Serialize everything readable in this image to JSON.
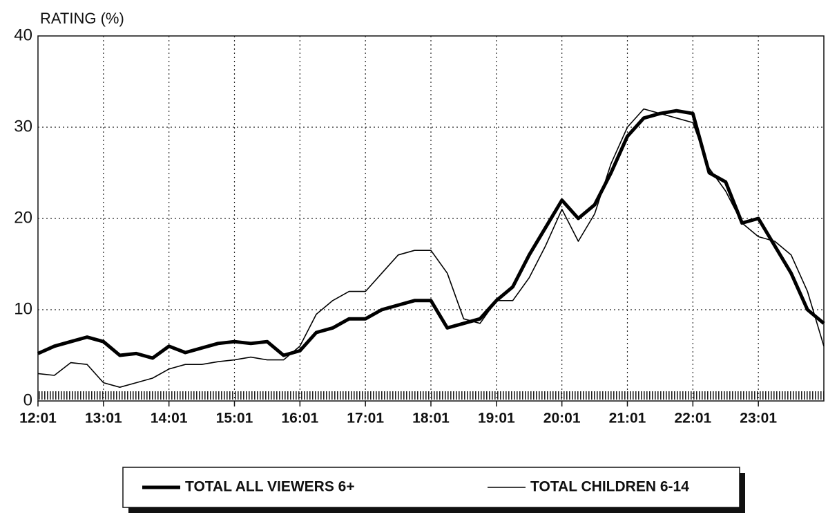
{
  "chart_data": {
    "type": "line",
    "y_label": "RATING (%)",
    "categories": [
      "12:01",
      null,
      null,
      null,
      "13:01",
      null,
      null,
      null,
      "14:01",
      null,
      null,
      null,
      "15:01",
      null,
      null,
      null,
      "16:01",
      null,
      null,
      null,
      "17:01",
      null,
      null,
      null,
      "18:01",
      null,
      null,
      null,
      "19:01",
      null,
      null,
      null,
      "20:01",
      null,
      null,
      null,
      "21:01",
      null,
      null,
      null,
      "22:01",
      null,
      null,
      null,
      "23:01",
      null,
      null,
      null,
      null
    ],
    "series": [
      {
        "name": "TOTAL ALL VIEWERS 6+",
        "color": "#000000",
        "width": 5,
        "values": [
          5.2,
          6,
          6.5,
          7,
          6.5,
          5,
          5.2,
          4.7,
          6,
          5.3,
          5.8,
          6.3,
          6.5,
          6.3,
          6.5,
          5,
          5.5,
          7.5,
          8,
          9,
          9,
          10,
          10.5,
          11,
          11,
          8,
          8.5,
          9,
          11,
          12.5,
          16,
          19,
          22,
          20,
          21.5,
          25,
          29,
          31,
          31.5,
          31.8,
          31.5,
          25,
          24,
          19.5,
          20,
          17,
          14,
          10,
          8.5
        ]
      },
      {
        "name": "TOTAL CHILDREN 6-14",
        "color": "#000000",
        "width": 1.6,
        "values": [
          3,
          2.8,
          4.2,
          4,
          2,
          1.5,
          2,
          2.5,
          3.5,
          4,
          4,
          4.3,
          4.5,
          4.8,
          4.5,
          4.5,
          6,
          9.5,
          11,
          12,
          12,
          14,
          16,
          16.5,
          16.5,
          14,
          9,
          8.5,
          11,
          11,
          13.5,
          17,
          21,
          17.5,
          20.5,
          26,
          30,
          32,
          31.5,
          31,
          30.5,
          25.5,
          23,
          19.5,
          18,
          17.5,
          16,
          12,
          6
        ]
      }
    ],
    "ylim": [
      0,
      40
    ],
    "yticks": [
      0,
      10,
      20,
      30,
      40
    ],
    "grid": true,
    "legend": "bottom"
  }
}
